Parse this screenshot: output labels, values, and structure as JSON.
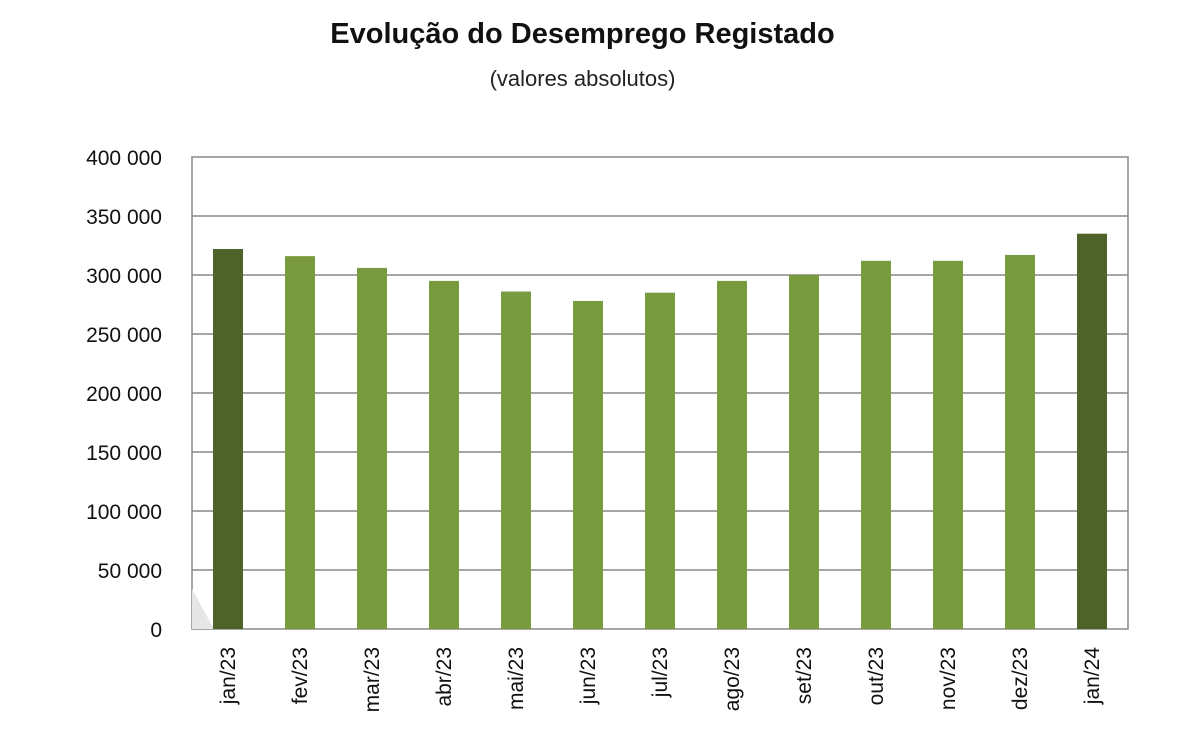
{
  "chart_data": {
    "type": "bar",
    "title": "Evolução do Desemprego Registado",
    "subtitle": "(valores absolutos)",
    "categories": [
      "jan/23",
      "fev/23",
      "mar/23",
      "abr/23",
      "mai/23",
      "jun/23",
      "jul/23",
      "ago/23",
      "set/23",
      "out/23",
      "nov/23",
      "dez/23",
      "jan/24"
    ],
    "values": [
      322000,
      316000,
      306000,
      295000,
      286000,
      278000,
      285000,
      295000,
      300000,
      312000,
      312000,
      317000,
      335000
    ],
    "ylim": [
      0,
      400000
    ],
    "yticks": [
      0,
      50000,
      100000,
      150000,
      200000,
      250000,
      300000,
      350000,
      400000
    ],
    "ytick_labels": [
      "0",
      "50 000",
      "100 000",
      "150 000",
      "200 000",
      "250 000",
      "300 000",
      "350 000",
      "400 000"
    ],
    "xlabel": "",
    "ylabel": "",
    "grid": true,
    "highlight_indices": [
      0,
      12
    ],
    "colors": {
      "bar": "#7a9a3f",
      "bar_highlight": "#4e632a",
      "grid": "#888888",
      "frame": "#888888"
    }
  }
}
